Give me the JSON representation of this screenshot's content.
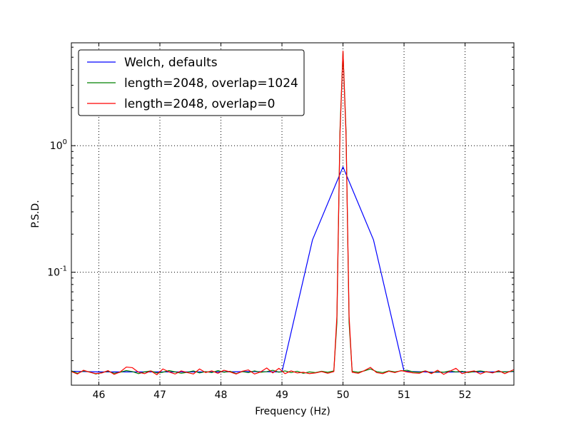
{
  "chart_data": {
    "type": "line",
    "title": "",
    "xlabel": "Frequency (Hz)",
    "ylabel": "P.S.D.",
    "xlim": [
      45.55,
      52.8
    ],
    "ylim": [
      0.0128,
      6.5
    ],
    "yscale": "log",
    "grid": true,
    "legend_position": "top-left",
    "xticks": [
      46,
      47,
      48,
      49,
      50,
      51,
      52
    ],
    "xtick_labels": [
      "46",
      "47",
      "48",
      "49",
      "50",
      "51",
      "52"
    ],
    "yticks": [
      1,
      0.1
    ],
    "ytick_labels": [
      {
        "base": "10",
        "exp": "0"
      },
      {
        "base": "10",
        "exp": "-1"
      }
    ],
    "series": [
      {
        "name": "Welch, defaults",
        "color": "#0000ff",
        "x": [
          45.55,
          46.0,
          46.5,
          47.0,
          47.5,
          48.0,
          48.5,
          49.0,
          49.5,
          50.0,
          50.5,
          51.0,
          51.5,
          52.0,
          52.5,
          52.8
        ],
        "y": [
          0.0165,
          0.0163,
          0.0163,
          0.0163,
          0.0163,
          0.0163,
          0.0164,
          0.0163,
          0.18,
          0.68,
          0.18,
          0.0165,
          0.0162,
          0.0163,
          0.0163,
          0.0164
        ]
      },
      {
        "name": "length=2048, overlap=1024",
        "color": "#008000",
        "x": [
          45.55,
          45.65,
          45.75,
          45.85,
          45.95,
          46.05,
          46.15,
          46.25,
          46.35,
          46.45,
          46.55,
          46.65,
          46.75,
          46.85,
          46.95,
          47.05,
          47.15,
          47.25,
          47.35,
          47.45,
          47.55,
          47.65,
          47.75,
          47.85,
          47.95,
          48.05,
          48.15,
          48.25,
          48.35,
          48.45,
          48.55,
          48.65,
          48.75,
          48.85,
          48.95,
          49.05,
          49.15,
          49.25,
          49.35,
          49.45,
          49.55,
          49.65,
          49.75,
          49.85,
          49.9,
          49.95,
          50.0,
          50.05,
          50.1,
          50.15,
          50.25,
          50.35,
          50.45,
          50.55,
          50.65,
          50.75,
          50.85,
          50.95,
          51.05,
          51.15,
          51.25,
          51.35,
          51.45,
          51.55,
          51.65,
          51.75,
          51.85,
          51.95,
          52.05,
          52.15,
          52.25,
          52.35,
          52.45,
          52.55,
          52.65,
          52.8
        ],
        "y": [
          0.0166,
          0.0159,
          0.0166,
          0.0163,
          0.0157,
          0.0161,
          0.0165,
          0.0159,
          0.0162,
          0.0167,
          0.0164,
          0.0158,
          0.0163,
          0.0166,
          0.016,
          0.0162,
          0.0167,
          0.0163,
          0.0159,
          0.0162,
          0.0166,
          0.016,
          0.0164,
          0.0161,
          0.0167,
          0.0162,
          0.0165,
          0.0158,
          0.0164,
          0.0161,
          0.0166,
          0.0162,
          0.0164,
          0.0168,
          0.0162,
          0.0166,
          0.0161,
          0.0165,
          0.0159,
          0.0163,
          0.0161,
          0.0165,
          0.0162,
          0.0166,
          0.04,
          1.3,
          5.5,
          1.3,
          0.04,
          0.0165,
          0.0162,
          0.0166,
          0.0172,
          0.0164,
          0.0161,
          0.0166,
          0.0163,
          0.0166,
          0.0168,
          0.0163,
          0.0162,
          0.0166,
          0.016,
          0.0164,
          0.0162,
          0.0166,
          0.0163,
          0.0165,
          0.0161,
          0.0164,
          0.0166,
          0.0163,
          0.0161,
          0.0164,
          0.0163,
          0.0165
        ]
      },
      {
        "name": "length=2048, overlap=0",
        "color": "#ff0000",
        "x": [
          45.55,
          45.65,
          45.75,
          45.85,
          45.95,
          46.05,
          46.15,
          46.25,
          46.35,
          46.45,
          46.55,
          46.65,
          46.75,
          46.85,
          46.95,
          47.05,
          47.15,
          47.25,
          47.35,
          47.45,
          47.55,
          47.65,
          47.75,
          47.85,
          47.95,
          48.05,
          48.15,
          48.25,
          48.35,
          48.45,
          48.55,
          48.65,
          48.75,
          48.85,
          48.95,
          49.05,
          49.15,
          49.25,
          49.35,
          49.45,
          49.55,
          49.65,
          49.75,
          49.85,
          49.9,
          49.95,
          50.0,
          50.05,
          50.1,
          50.15,
          50.25,
          50.35,
          50.45,
          50.55,
          50.65,
          50.75,
          50.85,
          50.95,
          51.05,
          51.15,
          51.25,
          51.35,
          51.45,
          51.55,
          51.65,
          51.75,
          51.85,
          51.95,
          52.05,
          52.15,
          52.25,
          52.35,
          52.45,
          52.55,
          52.65,
          52.8
        ],
        "y": [
          0.0164,
          0.0157,
          0.0168,
          0.0162,
          0.0158,
          0.016,
          0.0167,
          0.0156,
          0.0163,
          0.0178,
          0.0176,
          0.0162,
          0.0158,
          0.0166,
          0.0155,
          0.0172,
          0.0163,
          0.0157,
          0.0166,
          0.0161,
          0.0157,
          0.0172,
          0.0161,
          0.0166,
          0.0159,
          0.0168,
          0.0163,
          0.0157,
          0.0165,
          0.0169,
          0.0157,
          0.0163,
          0.0175,
          0.016,
          0.0174,
          0.0158,
          0.0166,
          0.016,
          0.0162,
          0.0158,
          0.016,
          0.0164,
          0.0159,
          0.0164,
          0.045,
          1.2,
          5.6,
          1.2,
          0.045,
          0.0162,
          0.0159,
          0.0167,
          0.0177,
          0.0161,
          0.0158,
          0.0165,
          0.0161,
          0.0167,
          0.0163,
          0.016,
          0.0159,
          0.0166,
          0.0158,
          0.0168,
          0.0156,
          0.0165,
          0.0174,
          0.0158,
          0.0163,
          0.0166,
          0.0157,
          0.0164,
          0.016,
          0.0167,
          0.0158,
          0.017
        ]
      }
    ]
  }
}
